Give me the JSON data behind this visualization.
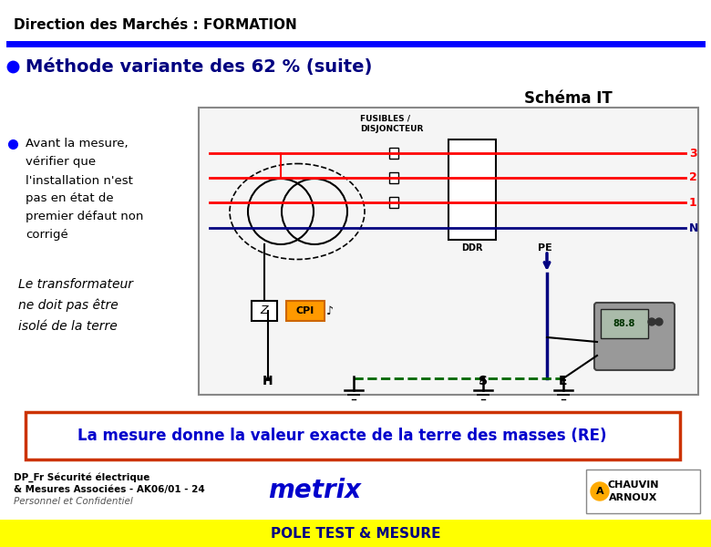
{
  "title": "Direction des Marchés : FORMATION",
  "subtitle": "Méthode variante des 62 % (suite)",
  "schema_title": "Schéma IT",
  "bullet1_lines": [
    "Avant la mesure,",
    "vérifier que",
    "l'installation n'est",
    "pas en état de",
    "premier défaut non",
    "corrigé"
  ],
  "bullet2_lines": [
    "Le transformateur",
    "ne doit pas être",
    "isolé de la terre"
  ],
  "box_text": "La mesure donne la valeur exacte de la terre des masses (R",
  "box_text_sub": "E",
  "box_text_end": ")",
  "footer_left1": "DP_Fr Sécurité électrique",
  "footer_left2": "& Mesures Associées - AK06/01 - 24",
  "footer_left3": "Personnel et Confidentiel",
  "footer_bottom": "POLE TEST & MESURE",
  "title_color": "#000000",
  "blue_line_color": "#0000FF",
  "subtitle_color": "#000080",
  "schema_title_color": "#000000",
  "bullet_color": "#000000",
  "box_border_color": "#CC3300",
  "box_text_color": "#0000CC",
  "footer_bottom_bg": "#FFFF00",
  "footer_bottom_color": "#000080",
  "bg_color": "#FFFFFF",
  "red": "#FF0000",
  "blue_dark": "#000080",
  "green_dark": "#006600",
  "black": "#000000"
}
